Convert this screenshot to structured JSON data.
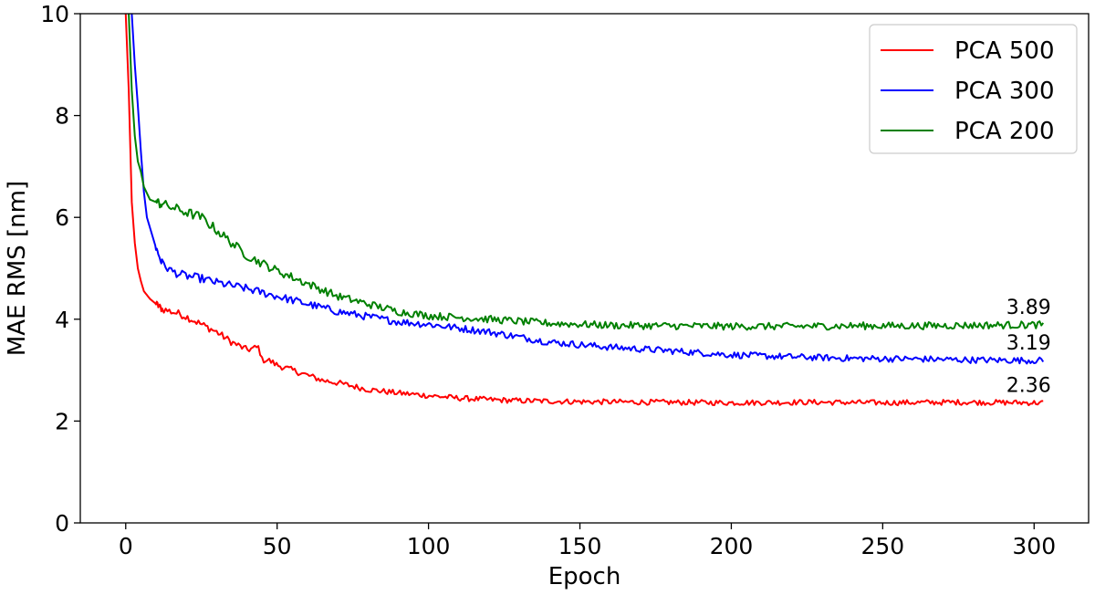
{
  "chart_data": {
    "type": "line",
    "title": "",
    "xlabel": "Epoch",
    "ylabel": "MAE RMS [nm]",
    "xlim": [
      -15,
      318
    ],
    "ylim": [
      0,
      10
    ],
    "xticks": [
      0,
      50,
      100,
      150,
      200,
      250,
      300
    ],
    "yticks": [
      0,
      2,
      4,
      6,
      8,
      10
    ],
    "grid": false,
    "legend_position": "top-right",
    "series": [
      {
        "name": "PCA 500",
        "color": "#ff0000",
        "x": [
          0,
          1,
          2,
          3,
          4,
          5,
          6,
          8,
          10,
          12,
          15,
          18,
          20,
          25,
          30,
          35,
          40,
          44,
          45,
          47,
          50,
          55,
          60,
          65,
          70,
          80,
          90,
          100,
          110,
          120,
          130,
          140,
          150,
          175,
          200,
          225,
          250,
          275,
          300,
          303
        ],
        "y": [
          10.0,
          8.5,
          6.3,
          5.5,
          5.0,
          4.75,
          4.55,
          4.4,
          4.3,
          4.2,
          4.15,
          4.1,
          4.05,
          3.9,
          3.75,
          3.55,
          3.4,
          3.45,
          3.2,
          3.2,
          3.1,
          3.0,
          2.9,
          2.8,
          2.75,
          2.62,
          2.55,
          2.5,
          2.45,
          2.42,
          2.4,
          2.39,
          2.38,
          2.37,
          2.36,
          2.37,
          2.36,
          2.37,
          2.36,
          2.36
        ]
      },
      {
        "name": "PCA 300",
        "color": "#0000ff",
        "x": [
          2,
          3,
          4,
          5,
          6,
          7,
          8,
          10,
          12,
          15,
          18,
          20,
          25,
          30,
          40,
          50,
          60,
          70,
          80,
          90,
          100,
          120,
          140,
          160,
          180,
          200,
          220,
          240,
          260,
          280,
          300,
          303
        ],
        "y": [
          10.0,
          9.0,
          8.2,
          7.3,
          6.5,
          6.0,
          5.8,
          5.4,
          5.1,
          4.95,
          4.88,
          4.85,
          4.8,
          4.72,
          4.6,
          4.45,
          4.3,
          4.15,
          4.05,
          3.95,
          3.9,
          3.75,
          3.55,
          3.45,
          3.38,
          3.3,
          3.26,
          3.23,
          3.22,
          3.2,
          3.19,
          3.19
        ]
      },
      {
        "name": "PCA 200",
        "color": "#008000",
        "x": [
          1,
          2,
          3,
          4,
          5,
          6,
          8,
          10,
          15,
          20,
          25,
          30,
          35,
          40,
          50,
          60,
          70,
          80,
          90,
          100,
          120,
          140,
          160,
          180,
          200,
          220,
          240,
          260,
          280,
          300,
          303
        ],
        "y": [
          10.0,
          8.5,
          7.6,
          7.1,
          6.9,
          6.6,
          6.35,
          6.3,
          6.2,
          6.1,
          6.0,
          5.75,
          5.5,
          5.25,
          4.95,
          4.7,
          4.45,
          4.3,
          4.15,
          4.07,
          4.0,
          3.92,
          3.88,
          3.87,
          3.86,
          3.86,
          3.87,
          3.87,
          3.88,
          3.89,
          3.89
        ]
      }
    ],
    "annotations": [
      {
        "text": "3.89",
        "x": 303,
        "y": 3.89
      },
      {
        "text": "3.19",
        "x": 303,
        "y": 3.19
      },
      {
        "text": "2.36",
        "x": 303,
        "y": 2.36
      }
    ]
  }
}
